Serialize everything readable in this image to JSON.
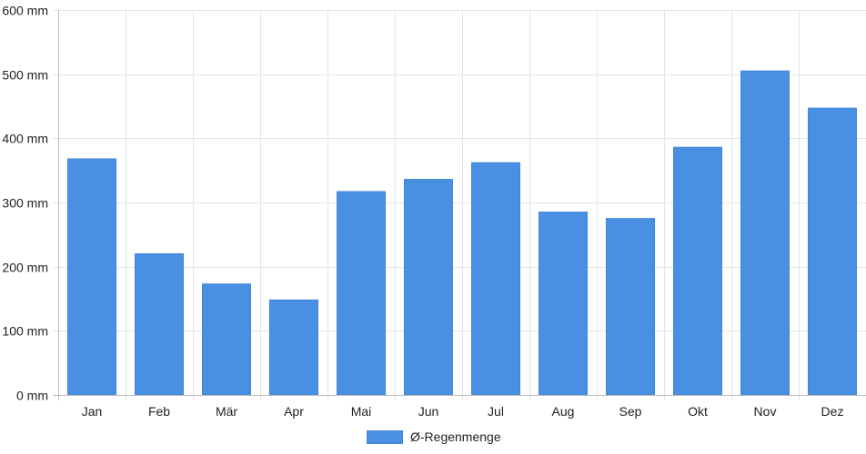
{
  "chart_data": {
    "type": "bar",
    "categories": [
      "Jan",
      "Feb",
      "Mär",
      "Apr",
      "Mai",
      "Jun",
      "Jul",
      "Aug",
      "Sep",
      "Okt",
      "Nov",
      "Dez"
    ],
    "series": [
      {
        "name": "Ø-Regenmenge",
        "values": [
          368,
          220,
          173,
          148,
          317,
          336,
          362,
          285,
          275,
          386,
          505,
          447
        ],
        "color": "#4a90e2"
      }
    ],
    "yunit": "mm",
    "ylim": [
      0,
      600
    ],
    "yticks": [
      0,
      100,
      200,
      300,
      400,
      500,
      600
    ],
    "ytick_labels": [
      "0 mm",
      "100 mm",
      "200 mm",
      "300 mm",
      "400 mm",
      "500 mm",
      "600 mm"
    ],
    "grid": true,
    "legend_position": "bottom"
  }
}
